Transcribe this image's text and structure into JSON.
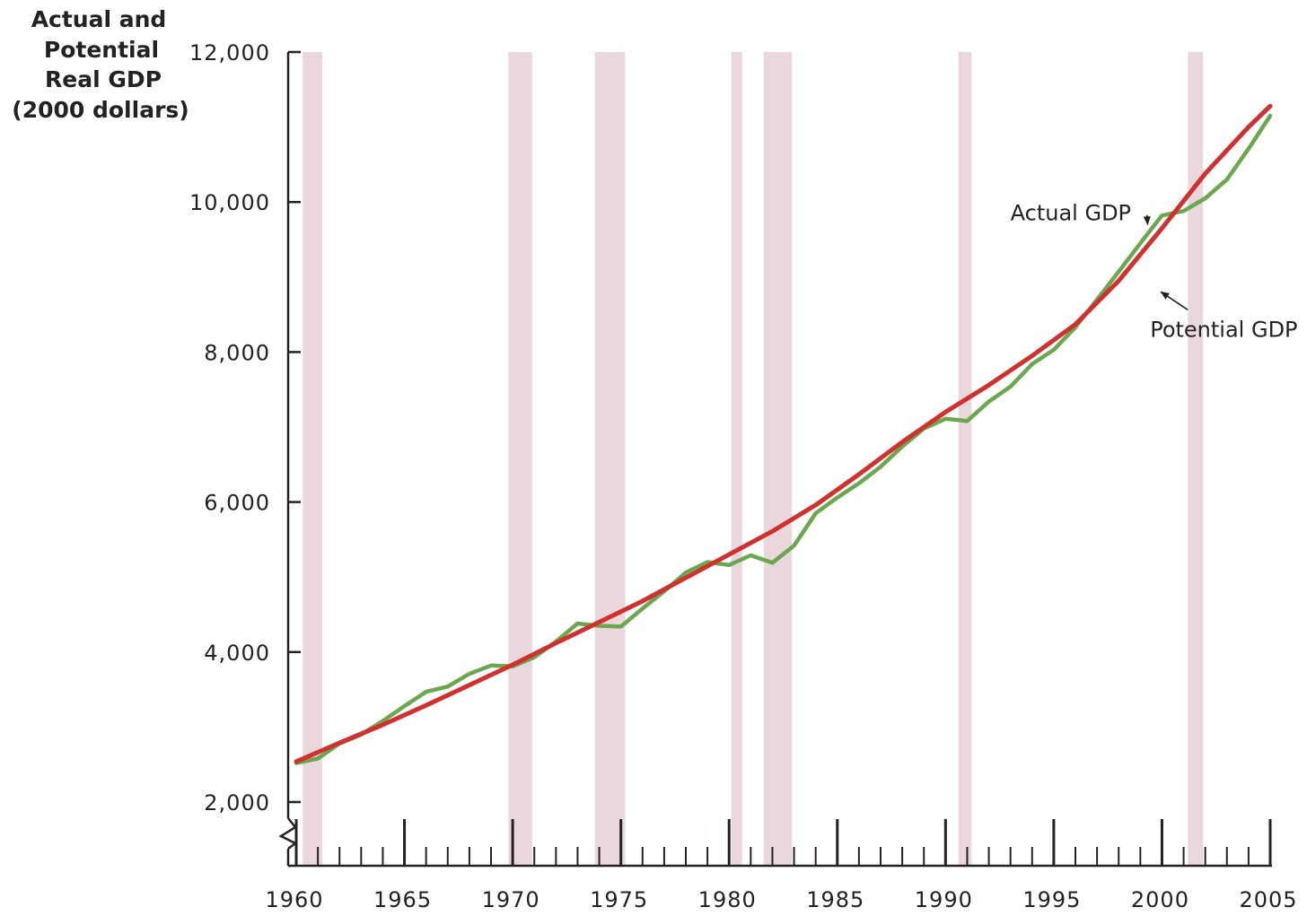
{
  "chart_data": {
    "type": "line",
    "ylabel_lines": [
      "Actual and",
      "Potential",
      "Real GDP",
      "(2000 dollars)"
    ],
    "xlabel": "",
    "xlim": [
      1960,
      2005
    ],
    "ylim": [
      2000,
      12000
    ],
    "axis_break": true,
    "y_ticks": [
      {
        "value": 2000,
        "label": "2,000"
      },
      {
        "value": 4000,
        "label": "4,000"
      },
      {
        "value": 6000,
        "label": "6,000"
      },
      {
        "value": 8000,
        "label": "8,000"
      },
      {
        "value": 10000,
        "label": "10,000"
      },
      {
        "value": 12000,
        "label": "12,000"
      }
    ],
    "x_ticks": [
      {
        "value": 1960,
        "label": "1960"
      },
      {
        "value": 1965,
        "label": "1965"
      },
      {
        "value": 1970,
        "label": "1970"
      },
      {
        "value": 1975,
        "label": "1975"
      },
      {
        "value": 1980,
        "label": "1980"
      },
      {
        "value": 1985,
        "label": "1985"
      },
      {
        "value": 1990,
        "label": "1990"
      },
      {
        "value": 1995,
        "label": "1995"
      },
      {
        "value": 2000,
        "label": "2000"
      },
      {
        "value": 2005,
        "label": "2005"
      }
    ],
    "recession_bands": [
      {
        "start": 1960.3,
        "end": 1961.2
      },
      {
        "start": 1969.8,
        "end": 1970.9
      },
      {
        "start": 1973.8,
        "end": 1975.2
      },
      {
        "start": 1980.1,
        "end": 1980.6
      },
      {
        "start": 1981.6,
        "end": 1982.9
      },
      {
        "start": 1990.6,
        "end": 1991.2
      },
      {
        "start": 2001.2,
        "end": 2001.9
      }
    ],
    "series": [
      {
        "name": "Actual GDP",
        "color": "#6aa84f",
        "x": [
          1960,
          1961,
          1962,
          1963,
          1964,
          1965,
          1966,
          1967,
          1968,
          1969,
          1970,
          1971,
          1972,
          1973,
          1974,
          1975,
          1976,
          1977,
          1978,
          1979,
          1980,
          1981,
          1982,
          1983,
          1984,
          1985,
          1986,
          1987,
          1988,
          1989,
          1990,
          1991,
          1992,
          1993,
          1994,
          1995,
          1996,
          1997,
          1998,
          1999,
          2000,
          2001,
          2002,
          2003,
          2004,
          2005
        ],
        "y": [
          2520,
          2580,
          2780,
          2900,
          3080,
          3280,
          3470,
          3540,
          3710,
          3820,
          3810,
          3930,
          4140,
          4380,
          4350,
          4340,
          4580,
          4810,
          5060,
          5200,
          5160,
          5290,
          5190,
          5420,
          5850,
          6060,
          6250,
          6470,
          6740,
          6980,
          7110,
          7080,
          7340,
          7540,
          7840,
          8030,
          8330,
          8700,
          9070,
          9450,
          9820,
          9880,
          10050,
          10300,
          10710,
          11150
        ]
      },
      {
        "name": "Potential GDP",
        "color": "#d32f2f",
        "x": [
          1960,
          1962,
          1964,
          1966,
          1968,
          1970,
          1972,
          1974,
          1976,
          1978,
          1980,
          1982,
          1984,
          1986,
          1988,
          1990,
          1992,
          1994,
          1996,
          1998,
          2000,
          2002,
          2004,
          2005
        ],
        "y": [
          2540,
          2790,
          3030,
          3290,
          3560,
          3830,
          4120,
          4400,
          4680,
          4990,
          5300,
          5610,
          5960,
          6370,
          6800,
          7200,
          7560,
          7950,
          8370,
          8950,
          9650,
          10380,
          11000,
          11280
        ]
      }
    ],
    "annotations": [
      {
        "text": "Actual GDP",
        "x": 1993.0,
        "y": 9850,
        "arrow_to_x": 1999.5,
        "arrow_to_y": 9700
      },
      {
        "text": "Potential GDP",
        "x": 1999.7,
        "y": 8300,
        "arrow_to_x": 2000.2,
        "arrow_to_y": 8850
      }
    ]
  }
}
